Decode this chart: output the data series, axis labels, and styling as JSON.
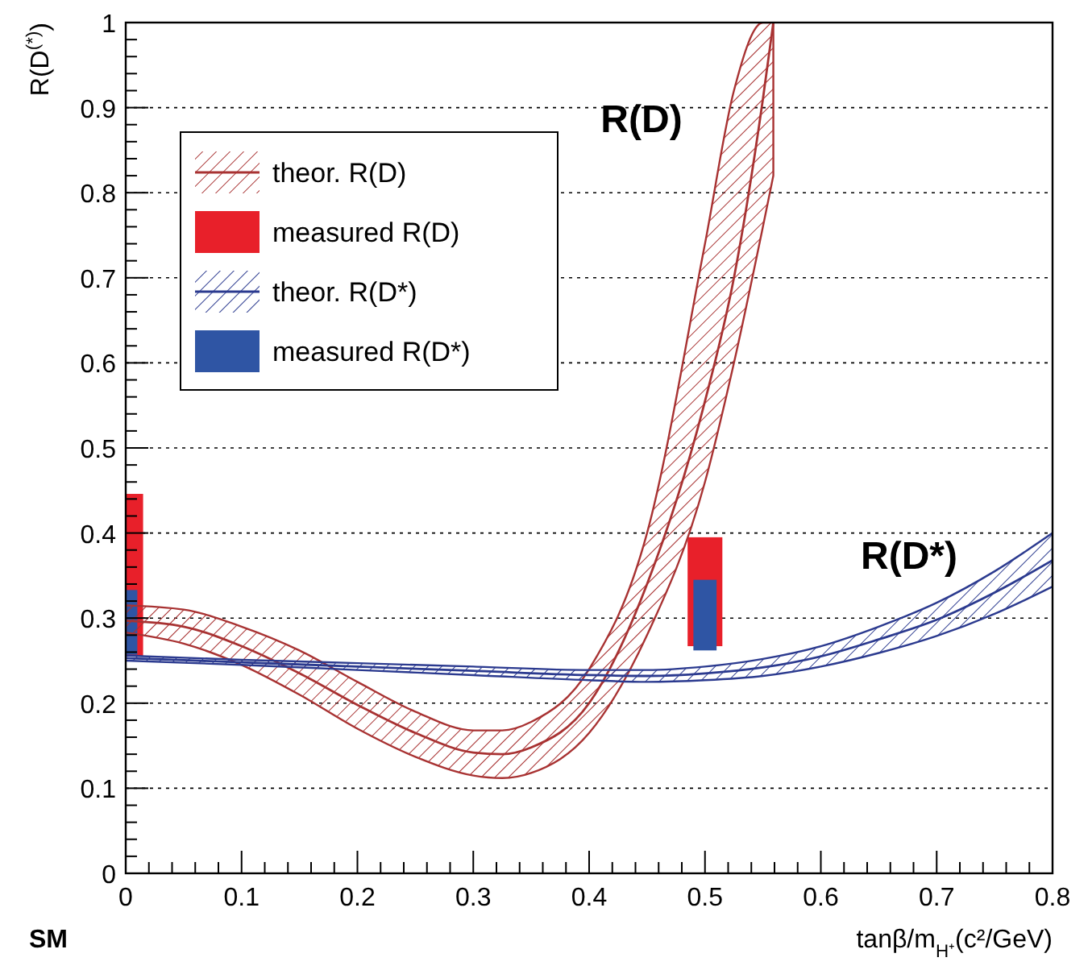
{
  "chart_data": {
    "type": "line",
    "xlabel": "tanβ/m$_{H⁺}$(c²/GeV)",
    "ylabel": "R(D$^{(*)}$)",
    "xlim": [
      0,
      0.8
    ],
    "ylim": [
      0,
      1
    ],
    "xticks": [
      0,
      {
        "value": 0.02,
        "label": null
      },
      {
        "value": 0.04,
        "label": null
      },
      {
        "value": 0.06,
        "label": null
      },
      {
        "value": 0.08,
        "label": null
      },
      {
        "value": 0.1,
        "label": "0.1"
      },
      {
        "value": 0.12,
        "label": null
      },
      {
        "value": 0.14,
        "label": null
      },
      {
        "value": 0.16,
        "label": null
      },
      {
        "value": 0.18,
        "label": null
      },
      {
        "value": 0.2,
        "label": "0.2"
      },
      {
        "value": 0.22,
        "label": null
      },
      {
        "value": 0.24,
        "label": null
      },
      {
        "value": 0.26,
        "label": null
      },
      {
        "value": 0.28,
        "label": null
      },
      {
        "value": 0.3,
        "label": "0.3"
      },
      {
        "value": 0.32,
        "label": null
      },
      {
        "value": 0.34,
        "label": null
      },
      {
        "value": 0.36,
        "label": null
      },
      {
        "value": 0.38,
        "label": null
      },
      {
        "value": 0.4,
        "label": "0.4"
      },
      {
        "value": 0.42,
        "label": null
      },
      {
        "value": 0.44,
        "label": null
      },
      {
        "value": 0.46,
        "label": null
      },
      {
        "value": 0.48,
        "label": null
      },
      {
        "value": 0.5,
        "label": "0.5"
      },
      {
        "value": 0.52,
        "label": null
      },
      {
        "value": 0.54,
        "label": null
      },
      {
        "value": 0.56,
        "label": null
      },
      {
        "value": 0.58,
        "label": null
      },
      {
        "value": 0.6,
        "label": "0.6"
      },
      {
        "value": 0.62,
        "label": null
      },
      {
        "value": 0.64,
        "label": null
      },
      {
        "value": 0.66,
        "label": null
      },
      {
        "value": 0.68,
        "label": null
      },
      {
        "value": 0.7,
        "label": "0.7"
      },
      {
        "value": 0.72,
        "label": null
      },
      {
        "value": 0.74,
        "label": null
      },
      {
        "value": 0.76,
        "label": null
      },
      {
        "value": 0.78,
        "label": null
      },
      {
        "value": 0.8,
        "label": "0.8"
      }
    ],
    "yticks": [
      0,
      {
        "value": 0.02,
        "label": null
      },
      {
        "value": 0.04,
        "label": null
      },
      {
        "value": 0.06,
        "label": null
      },
      {
        "value": 0.08,
        "label": null
      },
      {
        "value": 0.1,
        "label": "0.1"
      },
      {
        "value": 0.12,
        "label": null
      },
      {
        "value": 0.14,
        "label": null
      },
      {
        "value": 0.16,
        "label": null
      },
      {
        "value": 0.18,
        "label": null
      },
      {
        "value": 0.2,
        "label": "0.2"
      },
      {
        "value": 0.22,
        "label": null
      },
      {
        "value": 0.24,
        "label": null
      },
      {
        "value": 0.26,
        "label": null
      },
      {
        "value": 0.28,
        "label": null
      },
      {
        "value": 0.3,
        "label": "0.3"
      },
      {
        "value": 0.32,
        "label": null
      },
      {
        "value": 0.34,
        "label": null
      },
      {
        "value": 0.36,
        "label": null
      },
      {
        "value": 0.38,
        "label": null
      },
      {
        "value": 0.4,
        "label": "0.4"
      },
      {
        "value": 0.42,
        "label": null
      },
      {
        "value": 0.44,
        "label": null
      },
      {
        "value": 0.46,
        "label": null
      },
      {
        "value": 0.48,
        "label": null
      },
      {
        "value": 0.5,
        "label": "0.5"
      },
      {
        "value": 0.52,
        "label": null
      },
      {
        "value": 0.54,
        "label": null
      },
      {
        "value": 0.56,
        "label": null
      },
      {
        "value": 0.58,
        "label": null
      },
      {
        "value": 0.6,
        "label": "0.6"
      },
      {
        "value": 0.62,
        "label": null
      },
      {
        "value": 0.64,
        "label": null
      },
      {
        "value": 0.66,
        "label": null
      },
      {
        "value": 0.68,
        "label": null
      },
      {
        "value": 0.7,
        "label": "0.7"
      },
      {
        "value": 0.72,
        "label": null
      },
      {
        "value": 0.74,
        "label": null
      },
      {
        "value": 0.76,
        "label": null
      },
      {
        "value": 0.78,
        "label": null
      },
      {
        "value": 0.8,
        "label": "0.8"
      },
      {
        "value": 0.82,
        "label": null
      },
      {
        "value": 0.84,
        "label": null
      },
      {
        "value": 0.86,
        "label": null
      },
      {
        "value": 0.88,
        "label": null
      },
      {
        "value": 0.9,
        "label": "0.9"
      },
      {
        "value": 0.92,
        "label": null
      },
      {
        "value": 0.94,
        "label": null
      },
      {
        "value": 0.96,
        "label": null
      },
      {
        "value": 0.98,
        "label": null
      },
      1
    ],
    "grid": "y",
    "legend": "top left",
    "series": [
      {
        "name": "theor. R(D)",
        "color": "#a83232",
        "x": [
          0,
          0.05,
          0.1,
          0.15,
          0.2,
          0.25,
          0.3,
          0.325,
          0.35,
          0.4,
          0.45,
          0.5,
          0.525,
          0.55,
          0.559
        ],
        "values": [
          0.297,
          0.29,
          0.267,
          0.235,
          0.198,
          0.165,
          0.142,
          0.14,
          0.148,
          0.2,
          0.34,
          0.555,
          0.7,
          0.91,
          1
        ],
        "lower": [
          0.283,
          0.27,
          0.245,
          0.21,
          0.17,
          0.137,
          0.115,
          0.112,
          0.118,
          0.165,
          0.28,
          0.46,
          0.6,
          0.76,
          0.82
        ],
        "upper": [
          0.315,
          0.31,
          0.29,
          0.262,
          0.225,
          0.19,
          0.168,
          0.168,
          0.178,
          0.24,
          0.4,
          0.74,
          0.92,
          1,
          1
        ]
      },
      {
        "name": "measured R(D)",
        "type": "bar",
        "color": "#e8202a",
        "x": [
          0,
          0.5
        ],
        "base": [
          0.255,
          0.267
        ],
        "values": [
          0.191,
          0.128
        ]
      },
      {
        "name": "theor. R(D*)",
        "color": "#2b3a8f",
        "x": [
          0,
          0.1,
          0.2,
          0.3,
          0.4,
          0.45,
          0.5,
          0.55,
          0.6,
          0.65,
          0.7,
          0.75,
          0.8
        ],
        "values": [
          0.253,
          0.248,
          0.243,
          0.238,
          0.233,
          0.232,
          0.235,
          0.242,
          0.255,
          0.275,
          0.298,
          0.33,
          0.368
        ],
        "lower": [
          0.25,
          0.245,
          0.239,
          0.233,
          0.227,
          0.225,
          0.227,
          0.232,
          0.243,
          0.259,
          0.279,
          0.305,
          0.337
        ],
        "upper": [
          0.256,
          0.251,
          0.247,
          0.243,
          0.239,
          0.239,
          0.243,
          0.252,
          0.267,
          0.29,
          0.318,
          0.355,
          0.4
        ]
      },
      {
        "name": "measured R(D*)",
        "type": "bar",
        "color": "#2f55a4",
        "x": [
          0,
          0.5
        ],
        "base": [
          0.257,
          0.262
        ],
        "values": [
          0.076,
          0.083
        ]
      }
    ],
    "annotations": [
      "R(D)",
      "R(D*)",
      "SM"
    ]
  }
}
